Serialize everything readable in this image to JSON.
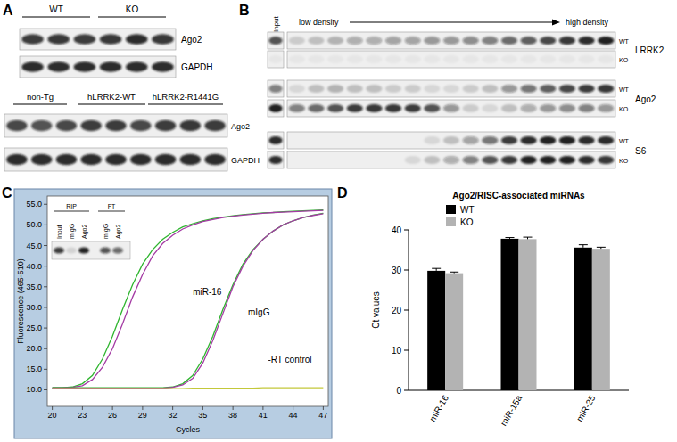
{
  "panel_labels": [
    "A",
    "B",
    "C",
    "D"
  ],
  "panels": {
    "A": {
      "top_blot": {
        "groups": [
          "WT",
          "KO"
        ],
        "rows": [
          "Ago2",
          "GAPDH"
        ]
      },
      "bottom_blot": {
        "groups": [
          "non-Tg",
          "hLRRK2-WT",
          "hLRRK2-R1441G"
        ],
        "rows": [
          "Ago2",
          "GAPDH"
        ]
      }
    },
    "B": {
      "input": "Input",
      "gradient_start": "low density",
      "gradient_end": "high density",
      "proteins": [
        {
          "name": "LRRK2",
          "rows": [
            "WT",
            "KO"
          ]
        },
        {
          "name": "Ago2",
          "rows": [
            "WT",
            "KO"
          ]
        },
        {
          "name": "S6",
          "rows": [
            "WT",
            "KO"
          ]
        }
      ]
    },
    "C_inset": {
      "groups": [
        "RIP",
        "FT"
      ],
      "lanes": [
        "Input",
        "mIgG",
        "Ago2",
        "mIgG",
        "Ago2"
      ]
    }
  },
  "chart_data": [
    {
      "type": "line",
      "x_label": "Cycles",
      "y_label": "Fluorescence (465-510)",
      "x": [
        20,
        21,
        22,
        23,
        24,
        25,
        26,
        27,
        28,
        29,
        30,
        31,
        32,
        33,
        34,
        35,
        36,
        37,
        38,
        39,
        40,
        41,
        42,
        43,
        44,
        45,
        46,
        47
      ],
      "series": [
        {
          "color": "#2fb52f",
          "values": [
            10.5,
            10.5,
            10.7,
            11.5,
            13.5,
            17.5,
            23,
            29.5,
            35.5,
            40.5,
            44,
            46.5,
            48.2,
            49.5,
            50.3,
            51,
            51.5,
            51.9,
            52.2,
            52.5,
            52.7,
            52.9,
            53,
            53.2,
            53.3,
            53.4,
            53.5,
            53.6
          ]
        },
        {
          "color": "#a43ca4",
          "values": [
            10.5,
            10.5,
            10.6,
            11,
            12.5,
            15.5,
            20,
            26,
            32.5,
            38,
            42.5,
            45.5,
            47.5,
            49,
            50,
            50.8,
            51.3,
            51.8,
            52.1,
            52.4,
            52.6,
            52.8,
            53,
            53.1,
            53.2,
            53.3,
            53.4,
            53.5
          ]
        },
        {
          "color": "#2fb52f",
          "values": [
            10.5,
            10.5,
            10.5,
            10.5,
            10.5,
            10.5,
            10.5,
            10.5,
            10.5,
            10.5,
            10.5,
            10.5,
            10.7,
            11.5,
            13.5,
            17.5,
            23,
            29.5,
            35.5,
            40.5,
            44,
            46.5,
            48.5,
            50,
            51,
            51.8,
            52.4,
            52.8
          ]
        },
        {
          "color": "#a43ca4",
          "values": [
            10.4,
            10.4,
            10.4,
            10.4,
            10.4,
            10.4,
            10.4,
            10.4,
            10.4,
            10.4,
            10.4,
            10.4,
            10.6,
            11.2,
            12.8,
            16.5,
            22,
            28.5,
            35,
            40,
            43.8,
            46.5,
            48.5,
            50,
            51,
            51.8,
            52.3,
            52.7
          ]
        },
        {
          "color": "#c3c83a",
          "values": [
            10.3,
            10.3,
            10.3,
            10.3,
            10.3,
            10.3,
            10.3,
            10.3,
            10.3,
            10.3,
            10.3,
            10.3,
            10.3,
            10.3,
            10.4,
            10.4,
            10.4,
            10.4,
            10.4,
            10.4,
            10.4,
            10.5,
            10.5,
            10.5,
            10.5,
            10.5,
            10.5,
            10.5
          ]
        }
      ],
      "annotations": [
        {
          "text": "miR-16",
          "x": 34,
          "y": 33
        },
        {
          "text": "mIgG",
          "x": 39.5,
          "y": 28
        },
        {
          "text": "-RT control",
          "x": 41.5,
          "y": 16.5
        }
      ],
      "xlim": [
        19.5,
        47.5
      ],
      "xticks": [
        20,
        23,
        26,
        29,
        32,
        35,
        38,
        41,
        44,
        47
      ],
      "ylim": [
        6,
        57
      ],
      "yticks": [
        {
          "value": 10,
          "label": "10.0"
        },
        {
          "value": 15,
          "label": "15.0"
        },
        {
          "value": 20,
          "label": "20.0"
        },
        {
          "value": 25,
          "label": "25.0"
        },
        {
          "value": 30,
          "label": "30.0"
        },
        {
          "value": 35,
          "label": "35.0"
        },
        {
          "value": 40,
          "label": "40.0"
        },
        {
          "value": 45,
          "label": "45.0"
        },
        {
          "value": 50,
          "label": "50.0"
        },
        {
          "value": 55,
          "label": "55.0"
        }
      ],
      "grid": false
    },
    {
      "type": "bar",
      "title": "Ago2/RISC-associated miRNAs",
      "y_label": "Ct values",
      "categories": [
        "miR-16",
        "miR-15a",
        "miR-25"
      ],
      "series": [
        {
          "name": "WT",
          "color": "#000000",
          "values": [
            29.8,
            37.8,
            35.6
          ],
          "error": [
            0.6,
            0.3,
            0.7
          ]
        },
        {
          "name": "KO",
          "color": "#b3b3b3",
          "values": [
            29.2,
            37.7,
            35.3
          ],
          "error": [
            0.3,
            0.5,
            0.4
          ]
        }
      ],
      "ylim": [
        0,
        40
      ],
      "yticks": [
        0,
        10,
        20,
        30,
        40
      ],
      "legend": "top",
      "grid": false
    }
  ]
}
